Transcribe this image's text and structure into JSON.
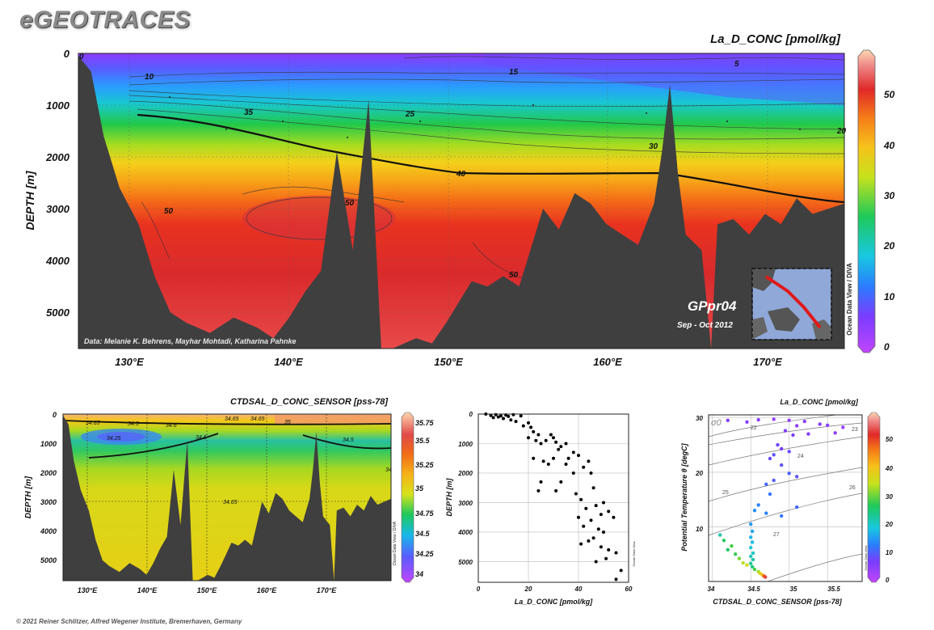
{
  "brand": "eGEOTRACES",
  "footer": "© 2021 Reiner Schlitzer, Alfred Wegener Institute, Bremerhaven, Germany",
  "main_section": {
    "title": "La_D_CONC [pmol/kg]",
    "ylabel": "DEPTH [m]",
    "credit": "Data: Melanie K. Behrens, Mayhar Mohtadi, Katharina Pahnke",
    "cruise": "GPpr04",
    "dates": "Sep - Oct 2012",
    "watermark": "Ocean Data View / DIVA",
    "colorbar_ticks": [
      "0",
      "10",
      "20",
      "30",
      "40",
      "50"
    ],
    "contour_labels": [
      "0",
      "5",
      "10",
      "15",
      "25",
      "20",
      "30",
      "35",
      "40",
      "50",
      "50",
      "50",
      "50"
    ]
  },
  "salinity_section": {
    "title": "CTDSAL_D_CONC_SENSOR [pss-78]",
    "ylabel": "DEPTH [m]",
    "watermark": "Ocean Data View / DIVA",
    "colorbar_ticks": [
      "34",
      "34.25",
      "34.5",
      "34.75",
      "35",
      "35.25",
      "35.5",
      "35.75"
    ],
    "contour_labels": [
      "34.65",
      "34.5",
      "34.6",
      "34.65",
      "35",
      "34.65",
      "34.5",
      "34.25",
      "34.5",
      "34",
      "34.65",
      "35"
    ]
  },
  "profile": {
    "xlabel": "La_D_CONC [pmol/kg]",
    "ylabel": "DEPTH [m]",
    "watermark": "Ocean Data View"
  },
  "ts_diagram": {
    "title": "La_D_CONC [pmol/kg]",
    "xlabel": "CTDSAL_D_CONC_SENSOR [pss-78]",
    "ylabel": "Potential Temperature θ [degC]",
    "sigma_label": "σ0",
    "isopycnal_labels": [
      "22",
      "23",
      "24",
      "25",
      "26",
      "27"
    ],
    "colorbar_ticks": [
      "0",
      "10",
      "20",
      "30",
      "40",
      "50"
    ],
    "watermark": "Ocean Data View"
  },
  "chart_data": [
    {
      "type": "heatmap",
      "title": "La_D_CONC [pmol/kg]",
      "xlabel": "",
      "ylabel": "DEPTH [m]",
      "x_ticks": [
        "130°E",
        "140°E",
        "150°E",
        "160°E",
        "170°E"
      ],
      "x_tick_values": [
        130,
        140,
        150,
        160,
        170
      ],
      "xlim": [
        126.7,
        175
      ],
      "y_ticks": [
        "0",
        "1000",
        "2000",
        "3000",
        "4000",
        "5000"
      ],
      "y_tick_values": [
        0,
        1000,
        2000,
        3000,
        4000,
        5000
      ],
      "ylim": [
        5700,
        0
      ],
      "color_range": [
        0,
        58
      ],
      "colorbar_ticks": [
        0,
        10,
        20,
        30,
        40,
        50
      ],
      "bathymetry": {
        "lon": [
          126.7,
          127.5,
          128.3,
          129.3,
          130.5,
          131.5,
          132.5,
          133.5,
          135,
          136.5,
          138,
          139,
          140,
          141,
          142,
          143,
          144,
          145,
          145.8,
          146.5,
          148,
          149,
          149.9,
          150.5,
          151.5,
          152.5,
          153.5,
          154.5,
          155,
          156,
          157,
          158,
          159,
          160,
          161,
          162,
          163,
          163.5,
          164,
          164.5,
          165,
          166,
          166.6,
          167,
          168,
          169,
          170,
          171,
          172,
          173,
          174,
          175
        ],
        "depth": [
          50,
          350,
          1600,
          2600,
          3300,
          4300,
          5000,
          5200,
          5400,
          5100,
          5300,
          5500,
          5100,
          4600,
          4200,
          1900,
          3800,
          900,
          5700,
          5700,
          5500,
          5600,
          5200,
          4900,
          4400,
          4500,
          4300,
          4500,
          4000,
          3000,
          3400,
          2700,
          2900,
          3300,
          3500,
          3700,
          2900,
          1900,
          600,
          2300,
          3500,
          3800,
          5700,
          3300,
          3200,
          3500,
          3100,
          3300,
          2800,
          3100,
          3000,
          2900
        ]
      },
      "contours": [
        {
          "level": 5,
          "label": "5"
        },
        {
          "level": 10,
          "label": "10"
        },
        {
          "level": 15,
          "label": "15"
        },
        {
          "level": 20,
          "label": "20"
        },
        {
          "level": 25,
          "label": "25"
        },
        {
          "level": 30,
          "label": "30"
        },
        {
          "level": 35,
          "label": "35"
        },
        {
          "level": 40,
          "label": "40"
        },
        {
          "level": 50,
          "label": "50"
        }
      ],
      "layers": [
        {
          "depth_top": 0,
          "depth_bottom": 300,
          "value": 5
        },
        {
          "depth_top": 300,
          "depth_bottom": 1200,
          "value": 22
        },
        {
          "depth_top": 1200,
          "depth_bottom": 2000,
          "value": 35
        },
        {
          "depth_top": 2000,
          "depth_bottom": 2600,
          "value": 42
        },
        {
          "depth_top": 2600,
          "depth_bottom": 5700,
          "value": 50
        }
      ]
    },
    {
      "type": "heatmap",
      "title": "CTDSAL_D_CONC_SENSOR [pss-78]",
      "xlabel": "",
      "ylabel": "DEPTH [m]",
      "x_ticks": [
        "130°E",
        "140°E",
        "150°E",
        "160°E",
        "170°E"
      ],
      "x_tick_values": [
        130,
        140,
        150,
        160,
        170
      ],
      "xlim": [
        126.7,
        175
      ],
      "y_ticks": [
        "0",
        "1000",
        "2000",
        "3000",
        "4000",
        "5000"
      ],
      "y_tick_values": [
        0,
        1000,
        2000,
        3000,
        4000,
        5000
      ],
      "ylim": [
        5700,
        0
      ],
      "color_range": [
        33.9,
        35.85
      ],
      "colorbar_ticks": [
        34,
        34.25,
        34.5,
        34.75,
        35,
        35.25,
        35.5,
        35.75
      ],
      "layers": [
        {
          "depth_top": 0,
          "depth_bottom": 150,
          "value": 35.0
        },
        {
          "depth_top": 150,
          "depth_bottom": 600,
          "value": 34.6
        },
        {
          "depth_top": 600,
          "depth_bottom": 1200,
          "value": 34.4
        },
        {
          "depth_top": 1200,
          "depth_bottom": 2000,
          "value": 34.58
        },
        {
          "depth_top": 2000,
          "depth_bottom": 5700,
          "value": 34.68
        }
      ]
    },
    {
      "type": "scatter",
      "title": "",
      "xlabel": "La_D_CONC [pmol/kg]",
      "ylabel": "DEPTH [m]",
      "xlim": [
        0,
        60
      ],
      "ylim": [
        5700,
        0
      ],
      "x_ticks": [
        0,
        20,
        40,
        60
      ],
      "y_ticks": [
        0,
        1000,
        2000,
        3000,
        4000,
        5000
      ],
      "points": [
        [
          3,
          0
        ],
        [
          5,
          50
        ],
        [
          7,
          20
        ],
        [
          8,
          100
        ],
        [
          10,
          150
        ],
        [
          11,
          30
        ],
        [
          12,
          80
        ],
        [
          13,
          200
        ],
        [
          15,
          250
        ],
        [
          9,
          60
        ],
        [
          6,
          120
        ],
        [
          14,
          20
        ],
        [
          17,
          60
        ],
        [
          20,
          300
        ],
        [
          18,
          400
        ],
        [
          21,
          450
        ],
        [
          22,
          600
        ],
        [
          24,
          700
        ],
        [
          20,
          800
        ],
        [
          23,
          900
        ],
        [
          25,
          1000
        ],
        [
          27,
          900
        ],
        [
          30,
          800
        ],
        [
          29,
          700
        ],
        [
          31,
          950
        ],
        [
          33,
          1100
        ],
        [
          35,
          1000
        ],
        [
          32,
          1200
        ],
        [
          38,
          1300
        ],
        [
          36,
          1500
        ],
        [
          40,
          1400
        ],
        [
          44,
          1600
        ],
        [
          42,
          1800
        ],
        [
          45,
          2000
        ],
        [
          38,
          2000
        ],
        [
          35,
          1700
        ],
        [
          30,
          1500
        ],
        [
          28,
          1700
        ],
        [
          22,
          1500
        ],
        [
          26,
          1600
        ],
        [
          33,
          2300
        ],
        [
          25,
          2300
        ],
        [
          24,
          2600
        ],
        [
          31,
          2600
        ],
        [
          39,
          2700
        ],
        [
          46,
          2500
        ],
        [
          41,
          2900
        ],
        [
          43,
          3200
        ],
        [
          47,
          3100
        ],
        [
          50,
          3000
        ],
        [
          52,
          3300
        ],
        [
          49,
          3400
        ],
        [
          54,
          3500
        ],
        [
          45,
          3600
        ],
        [
          40,
          3500
        ],
        [
          42,
          3800
        ],
        [
          48,
          3900
        ],
        [
          50,
          4000
        ],
        [
          46,
          4200
        ],
        [
          44,
          4300
        ],
        [
          41,
          4400
        ],
        [
          49,
          4500
        ],
        [
          52,
          4600
        ],
        [
          55,
          4700
        ],
        [
          51,
          4900
        ],
        [
          47,
          5000
        ],
        [
          57,
          5300
        ],
        [
          55,
          5600
        ]
      ]
    },
    {
      "type": "scatter",
      "title": "La_D_CONC [pmol/kg]",
      "xlabel": "CTDSAL_D_CONC_SENSOR [pss-78]",
      "ylabel": "Potential Temperature θ [degC]",
      "xlim": [
        33.95,
        35.95
      ],
      "ylim": [
        0,
        30.5
      ],
      "x_ticks": [
        34,
        34.5,
        35,
        35.5
      ],
      "y_ticks": [
        10,
        20,
        30
      ],
      "color_range": [
        0,
        58
      ],
      "points": [
        [
          34.2,
          29.5,
          6
        ],
        [
          34.6,
          29.6,
          5
        ],
        [
          34.8,
          29.7,
          4
        ],
        [
          35.0,
          29.5,
          4
        ],
        [
          35.2,
          29.3,
          5
        ],
        [
          34.45,
          29.2,
          6
        ],
        [
          35.5,
          28.6,
          5
        ],
        [
          35.7,
          28.2,
          4
        ],
        [
          35.4,
          28.8,
          6
        ],
        [
          35.1,
          28.5,
          5
        ],
        [
          34.95,
          27.6,
          6
        ],
        [
          35.05,
          26.8,
          7
        ],
        [
          35.25,
          27.0,
          6
        ],
        [
          35.6,
          27.2,
          5
        ],
        [
          34.85,
          25.0,
          8
        ],
        [
          34.9,
          24.3,
          7
        ],
        [
          35.0,
          23.8,
          8
        ],
        [
          34.8,
          23.2,
          9
        ],
        [
          34.75,
          22.5,
          8
        ],
        [
          34.9,
          21.3,
          9
        ],
        [
          35.0,
          19.8,
          10
        ],
        [
          35.1,
          19.2,
          9
        ],
        [
          34.8,
          18.5,
          10
        ],
        [
          34.7,
          17.8,
          11
        ],
        [
          34.75,
          16.0,
          12
        ],
        [
          34.6,
          14.0,
          13
        ],
        [
          34.55,
          13.0,
          14
        ],
        [
          34.7,
          12.5,
          13
        ],
        [
          34.9,
          12.0,
          12
        ],
        [
          35.1,
          13.6,
          11
        ],
        [
          34.5,
          10.5,
          15
        ],
        [
          34.52,
          9.2,
          16
        ],
        [
          34.5,
          8.1,
          17
        ],
        [
          34.52,
          7.2,
          18
        ],
        [
          34.5,
          6.2,
          19
        ],
        [
          34.53,
          5.2,
          20
        ],
        [
          34.5,
          4.6,
          21
        ],
        [
          34.53,
          4.0,
          22
        ],
        [
          34.5,
          3.3,
          23
        ],
        [
          34.52,
          2.7,
          24
        ],
        [
          34.55,
          2.2,
          28
        ],
        [
          34.6,
          1.8,
          32
        ],
        [
          34.62,
          1.5,
          36
        ],
        [
          34.65,
          1.2,
          40
        ],
        [
          34.67,
          1.0,
          44
        ],
        [
          34.68,
          0.9,
          48
        ],
        [
          34.69,
          0.8,
          52
        ],
        [
          34.2,
          5.8,
          25
        ],
        [
          34.3,
          5.0,
          27
        ],
        [
          34.15,
          7.5,
          26
        ],
        [
          34.1,
          8.5,
          22
        ],
        [
          34.35,
          4.2,
          30
        ],
        [
          34.4,
          3.4,
          33
        ],
        [
          34.45,
          3.0,
          35
        ],
        [
          34.25,
          6.5,
          28
        ]
      ]
    }
  ]
}
